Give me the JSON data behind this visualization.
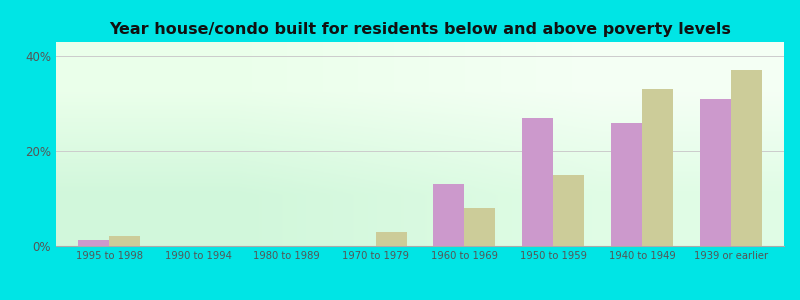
{
  "categories": [
    "1995 to 1998",
    "1990 to 1994",
    "1980 to 1989",
    "1970 to 1979",
    "1960 to 1969",
    "1950 to 1959",
    "1940 to 1949",
    "1939 or earlier"
  ],
  "below_poverty": [
    1.2,
    0.0,
    0.0,
    0.0,
    13.0,
    27.0,
    26.0,
    31.0
  ],
  "above_poverty": [
    2.2,
    0.0,
    0.0,
    3.0,
    8.0,
    15.0,
    33.0,
    37.0
  ],
  "below_color": "#cc99cc",
  "above_color": "#cccc99",
  "title": "Year house/condo built for residents below and above poverty levels",
  "title_fontsize": 11.5,
  "ylabel_ticks": [
    "0%",
    "20%",
    "40%"
  ],
  "ytick_vals": [
    0,
    20,
    40
  ],
  "ylim": [
    0,
    43
  ],
  "outer_bg": "#00e5e5",
  "bar_width": 0.35,
  "grid_color": "#cccccc",
  "tick_color": "#555555",
  "title_color": "#111111"
}
